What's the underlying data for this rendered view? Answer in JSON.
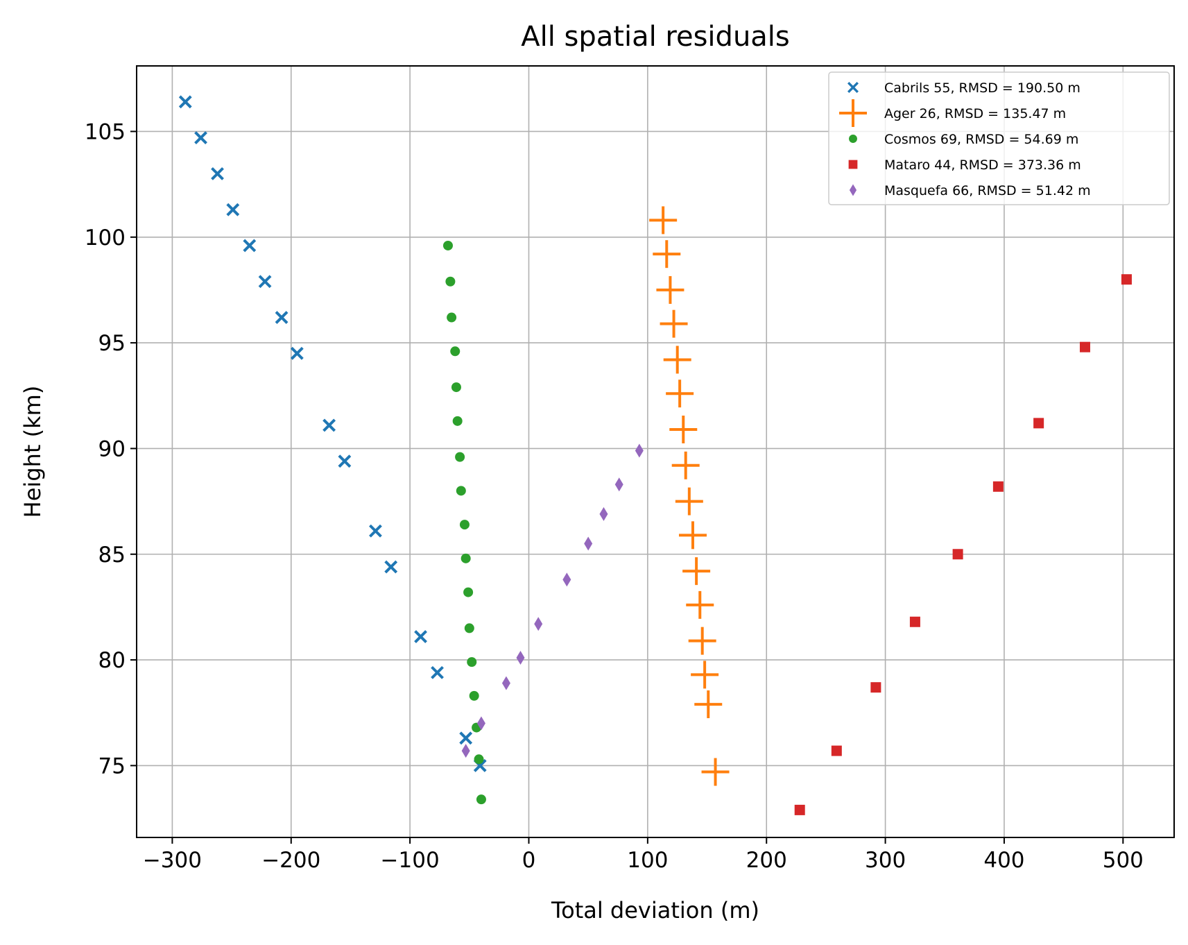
{
  "chart_data": {
    "type": "scatter",
    "title": "All spatial residuals",
    "xlabel": "Total deviation (m)",
    "ylabel": "Height (km)",
    "xlim": [
      -330,
      543
    ],
    "ylim": [
      71.6,
      108.1
    ],
    "xticks": [
      -300,
      -200,
      -100,
      0,
      100,
      200,
      300,
      400,
      500
    ],
    "xtick_labels": [
      "−300",
      "−200",
      "−100",
      "0",
      "100",
      "200",
      "300",
      "400",
      "500"
    ],
    "yticks": [
      75,
      80,
      85,
      90,
      95,
      100,
      105
    ],
    "ytick_labels": [
      "75",
      "80",
      "85",
      "90",
      "95",
      "100",
      "105"
    ],
    "grid": true,
    "legend_position": "top-right",
    "series": [
      {
        "name": "Cabrils 55, RMSD = 190.50 m",
        "marker": "x",
        "color": "#1f77b4",
        "points": [
          [
            -289,
            106.4
          ],
          [
            -276,
            104.7
          ],
          [
            -262,
            103.0
          ],
          [
            -249,
            101.3
          ],
          [
            -235,
            99.6
          ],
          [
            -222,
            97.9
          ],
          [
            -208,
            96.2
          ],
          [
            -195,
            94.5
          ],
          [
            -168,
            91.1
          ],
          [
            -155,
            89.4
          ],
          [
            -129,
            86.1
          ],
          [
            -116,
            84.4
          ],
          [
            -91,
            81.1
          ],
          [
            -77,
            79.4
          ],
          [
            -53,
            76.3
          ],
          [
            -41,
            75.0
          ]
        ]
      },
      {
        "name": "Ager 26, RMSD = 135.47 m",
        "marker": "plus",
        "color": "#ff7f0e",
        "points": [
          [
            113,
            100.8
          ],
          [
            116,
            99.2
          ],
          [
            119,
            97.5
          ],
          [
            122,
            95.9
          ],
          [
            125,
            94.2
          ],
          [
            127,
            92.6
          ],
          [
            130,
            90.9
          ],
          [
            132,
            89.2
          ],
          [
            135,
            87.5
          ],
          [
            138,
            85.9
          ],
          [
            141,
            84.2
          ],
          [
            144,
            82.6
          ],
          [
            146,
            80.9
          ],
          [
            148,
            79.3
          ],
          [
            151,
            77.9
          ],
          [
            157,
            74.7
          ]
        ]
      },
      {
        "name": "Cosmos 69, RMSD = 54.69 m",
        "marker": "circle",
        "color": "#2ca02c",
        "points": [
          [
            -68,
            99.6
          ],
          [
            -66,
            97.9
          ],
          [
            -65,
            96.2
          ],
          [
            -62,
            94.6
          ],
          [
            -61,
            92.9
          ],
          [
            -60,
            91.3
          ],
          [
            -58,
            89.6
          ],
          [
            -57,
            88.0
          ],
          [
            -54,
            86.4
          ],
          [
            -53,
            84.8
          ],
          [
            -51,
            83.2
          ],
          [
            -50,
            81.5
          ],
          [
            -48,
            79.9
          ],
          [
            -46,
            78.3
          ],
          [
            -44,
            76.8
          ],
          [
            -42,
            75.3
          ],
          [
            -40,
            73.4
          ]
        ]
      },
      {
        "name": "Mataro 44, RMSD = 373.36 m",
        "marker": "square",
        "color": "#d62728",
        "points": [
          [
            228,
            72.9
          ],
          [
            259,
            75.7
          ],
          [
            292,
            78.7
          ],
          [
            325,
            81.8
          ],
          [
            361,
            85.0
          ],
          [
            395,
            88.2
          ],
          [
            429,
            91.2
          ],
          [
            468,
            94.8
          ],
          [
            503,
            98.0
          ]
        ]
      },
      {
        "name": "Masquefa 66, RMSD = 51.42 m",
        "marker": "thin_diamond",
        "color": "#9467bd",
        "points": [
          [
            -53,
            75.7
          ],
          [
            -40,
            77.0
          ],
          [
            -19,
            78.9
          ],
          [
            -7,
            80.1
          ],
          [
            8,
            81.7
          ],
          [
            32,
            83.8
          ],
          [
            50,
            85.5
          ],
          [
            63,
            86.9
          ],
          [
            76,
            88.3
          ],
          [
            93,
            89.9
          ]
        ]
      }
    ]
  }
}
